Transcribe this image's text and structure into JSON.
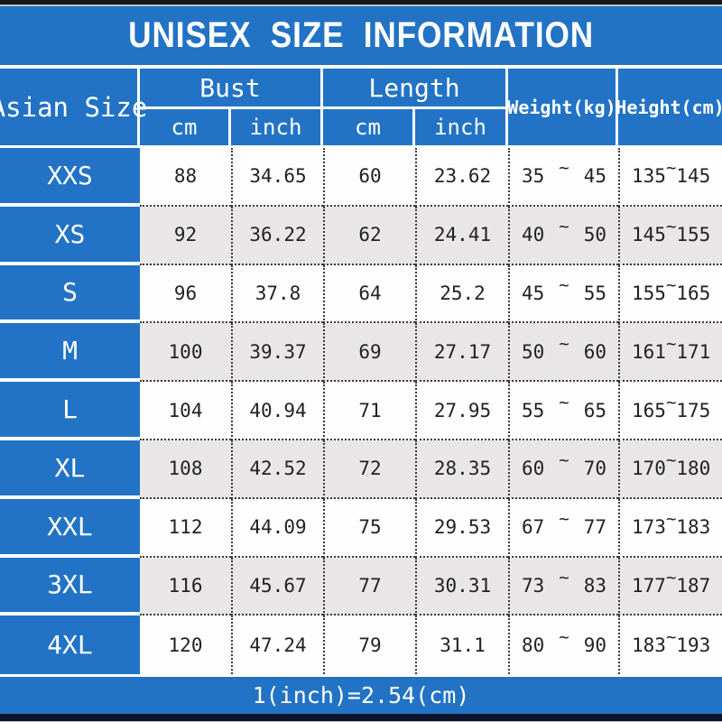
{
  "title": "UNISEX SIZE INFORMATION",
  "footer": {
    "note": "1(inch)=2.54(cm)"
  },
  "colors": {
    "blue": "#2273C5",
    "row_white": "#FEFEFE",
    "row_gray": "#E8E6E7",
    "header_text": "#FFFFFF",
    "cell_text": "#222222",
    "bottom_dark": "#0E142E",
    "bottom_gray": "#C6C6C6"
  },
  "table": {
    "tilde": "~",
    "header": {
      "asian_size": "Asian Size",
      "bust": "Bust",
      "length": "Length",
      "weight": "Weight(kg)",
      "height": "Height(cm)",
      "cm": "cm",
      "inch": "inch"
    },
    "rows": [
      {
        "size": "XXS",
        "bust_cm": "88",
        "bust_inch": "34.65",
        "length_cm": "60",
        "length_inch": "23.62",
        "weight_min": "35",
        "weight_max": "45",
        "height_min": "135",
        "height_max": "145"
      },
      {
        "size": "XS",
        "bust_cm": "92",
        "bust_inch": "36.22",
        "length_cm": "62",
        "length_inch": "24.41",
        "weight_min": "40",
        "weight_max": "50",
        "height_min": "145",
        "height_max": "155"
      },
      {
        "size": "S",
        "bust_cm": "96",
        "bust_inch": "37.8",
        "length_cm": "64",
        "length_inch": "25.2",
        "weight_min": "45",
        "weight_max": "55",
        "height_min": "155",
        "height_max": "165"
      },
      {
        "size": "M",
        "bust_cm": "100",
        "bust_inch": "39.37",
        "length_cm": "69",
        "length_inch": "27.17",
        "weight_min": "50",
        "weight_max": "60",
        "height_min": "161",
        "height_max": "171"
      },
      {
        "size": "L",
        "bust_cm": "104",
        "bust_inch": "40.94",
        "length_cm": "71",
        "length_inch": "27.95",
        "weight_min": "55",
        "weight_max": "65",
        "height_min": "165",
        "height_max": "175"
      },
      {
        "size": "XL",
        "bust_cm": "108",
        "bust_inch": "42.52",
        "length_cm": "72",
        "length_inch": "28.35",
        "weight_min": "60",
        "weight_max": "70",
        "height_min": "170",
        "height_max": "180"
      },
      {
        "size": "XXL",
        "bust_cm": "112",
        "bust_inch": "44.09",
        "length_cm": "75",
        "length_inch": "29.53",
        "weight_min": "67",
        "weight_max": "77",
        "height_min": "173",
        "height_max": "183"
      },
      {
        "size": "3XL",
        "bust_cm": "116",
        "bust_inch": "45.67",
        "length_cm": "77",
        "length_inch": "30.31",
        "weight_min": "73",
        "weight_max": "83",
        "height_min": "177",
        "height_max": "187"
      },
      {
        "size": "4XL",
        "bust_cm": "120",
        "bust_inch": "47.24",
        "length_cm": "79",
        "length_inch": "31.1",
        "weight_min": "80",
        "weight_max": "90",
        "height_min": "183",
        "height_max": "193"
      }
    ]
  },
  "chart_data": {
    "type": "table",
    "title": "UNISEX SIZE INFORMATION",
    "note": "1(inch)=2.54(cm)",
    "columns": [
      "Asian Size",
      "Bust cm",
      "Bust inch",
      "Length cm",
      "Length inch",
      "Weight(kg) min",
      "Weight(kg) max",
      "Height(cm) min",
      "Height(cm) max"
    ],
    "rows": [
      [
        "XXS",
        88,
        34.65,
        60,
        23.62,
        35,
        45,
        135,
        145
      ],
      [
        "XS",
        92,
        36.22,
        62,
        24.41,
        40,
        50,
        145,
        155
      ],
      [
        "S",
        96,
        37.8,
        64,
        25.2,
        45,
        55,
        155,
        165
      ],
      [
        "M",
        100,
        39.37,
        69,
        27.17,
        50,
        60,
        161,
        171
      ],
      [
        "L",
        104,
        40.94,
        71,
        27.95,
        55,
        65,
        165,
        175
      ],
      [
        "XL",
        108,
        42.52,
        72,
        28.35,
        60,
        70,
        170,
        180
      ],
      [
        "XXL",
        112,
        44.09,
        75,
        29.53,
        67,
        77,
        173,
        183
      ],
      [
        "3XL",
        116,
        45.67,
        77,
        30.31,
        73,
        83,
        177,
        187
      ],
      [
        "4XL",
        120,
        47.24,
        79,
        31.1,
        80,
        90,
        183,
        193
      ]
    ]
  }
}
